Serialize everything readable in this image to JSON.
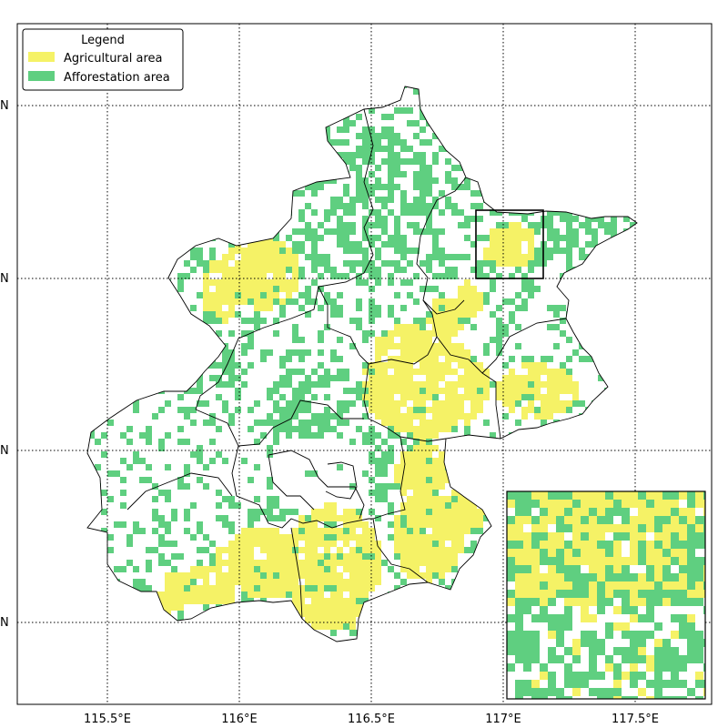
{
  "legend": {
    "title": "Legend",
    "items": [
      {
        "label": "Agricultural area",
        "color": "#f5f266"
      },
      {
        "label": "Afforestation area",
        "color": "#5fcf80"
      }
    ]
  },
  "map": {
    "x_ticks": [
      "115.5°E",
      "116°E",
      "116.5°E",
      "117°E",
      "117.5°E"
    ],
    "y_ticks": [
      "N",
      "N",
      "N",
      "N"
    ],
    "gridlines": "dotted",
    "inset": "zoom of framed box, bottom-right"
  }
}
